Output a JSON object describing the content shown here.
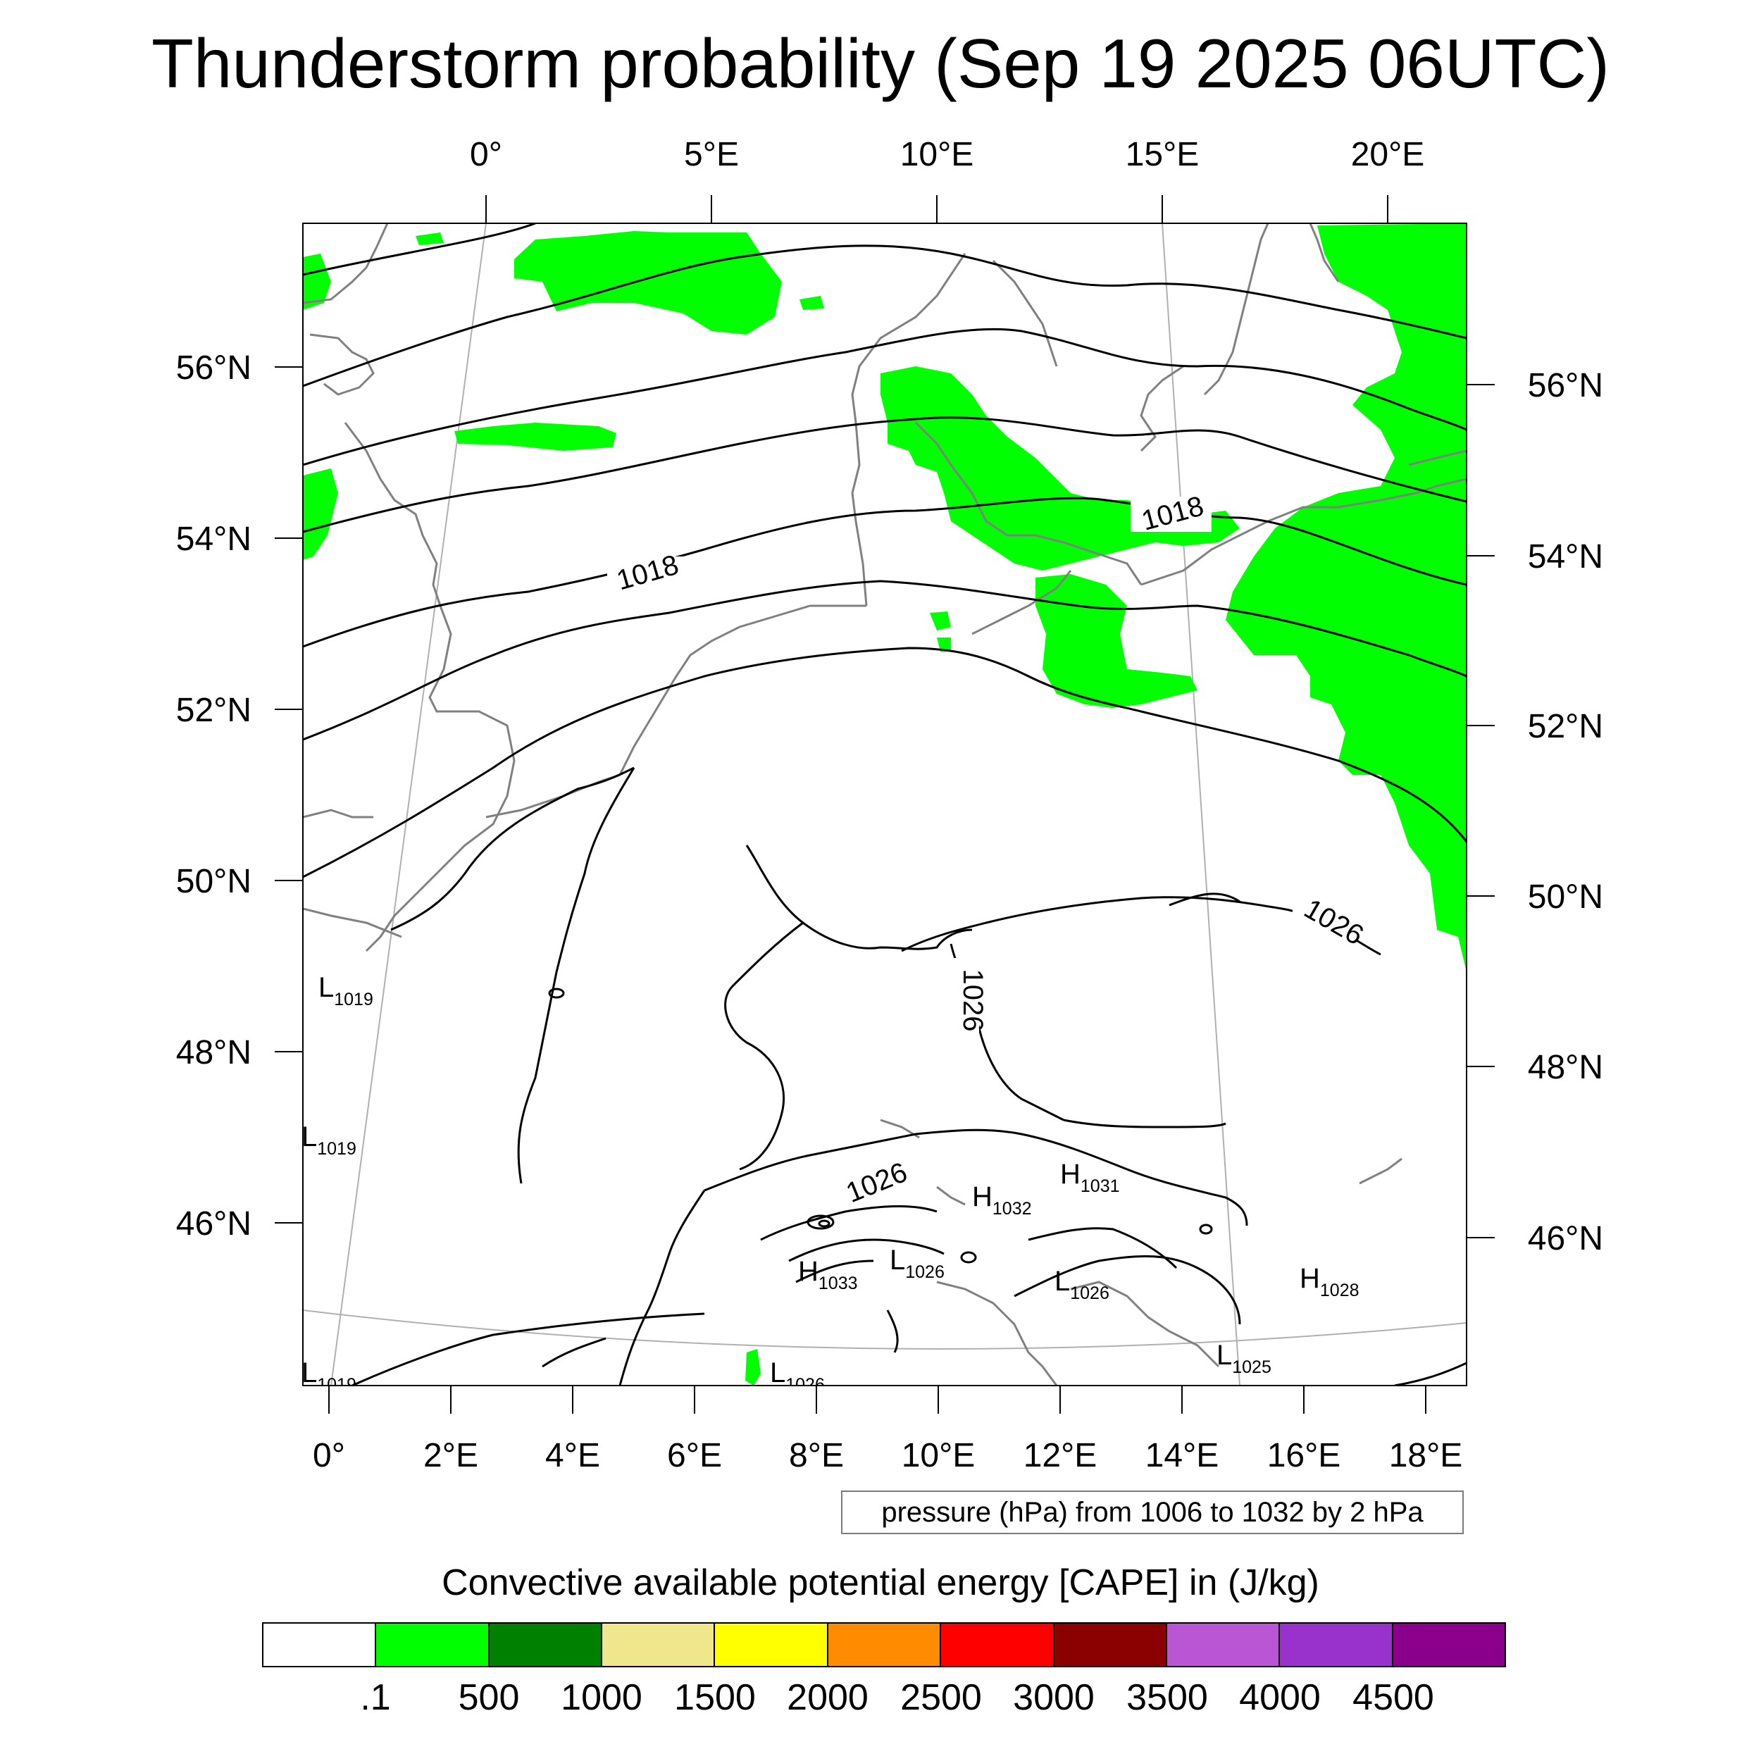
{
  "title": "Thunderstorm probability (Sep 19 2025 06UTC)",
  "map": {
    "top_lon_labels": [
      "0°",
      "5°E",
      "10°E",
      "15°E",
      "20°E"
    ],
    "bottom_lon_labels": [
      "0°",
      "2°E",
      "4°E",
      "6°E",
      "8°E",
      "10°E",
      "12°E",
      "14°E",
      "16°E",
      "18°E"
    ],
    "left_lat_labels": [
      "56°N",
      "54°N",
      "52°N",
      "50°N",
      "48°N",
      "46°N"
    ],
    "right_lat_labels": [
      "56°N",
      "54°N",
      "52°N",
      "50°N",
      "48°N",
      "46°N"
    ],
    "contour_labels": [
      "1018",
      "1018",
      "1026",
      "1026",
      "1026"
    ],
    "pressure_centers": [
      {
        "type": "L",
        "value": "1019"
      },
      {
        "type": "L",
        "value": "1019"
      },
      {
        "type": "L",
        "value": "1019"
      },
      {
        "type": "L",
        "value": "1026"
      },
      {
        "type": "H",
        "value": "1033"
      },
      {
        "type": "L",
        "value": "1026"
      },
      {
        "type": "H",
        "value": "1032"
      },
      {
        "type": "H",
        "value": "1031"
      },
      {
        "type": "L",
        "value": "1026"
      },
      {
        "type": "L",
        "value": "1025"
      },
      {
        "type": "H",
        "value": "1028"
      }
    ],
    "colors": {
      "cape_fill": "#00ff00",
      "isobar": "#000000",
      "coast": "#808080"
    }
  },
  "info_box": "pressure (hPa) from 1006 to 1032 by 2 hPa",
  "colorbar": {
    "title": "Convective available potential energy [CAPE] in (J/kg)",
    "colors": [
      "#ffffff",
      "#00ff00",
      "#008000",
      "#f0e68c",
      "#ffff00",
      "#ff8c00",
      "#ff0000",
      "#8b0000",
      "#ba55d3",
      "#9932cc",
      "#8b008b"
    ],
    "labels": [
      ".1",
      "500",
      "1000",
      "1500",
      "2000",
      "2500",
      "3000",
      "3500",
      "4000",
      "4500"
    ]
  }
}
